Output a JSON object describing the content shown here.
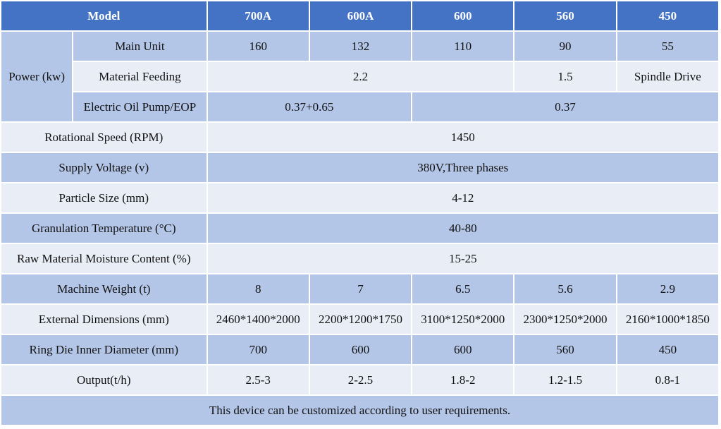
{
  "header": [
    "Model",
    "700A",
    "600A",
    "600",
    "560",
    "450"
  ],
  "power": {
    "label": "Power (kw)",
    "rows": [
      {
        "label": "Main Unit",
        "cells": [
          "160",
          "132",
          "110",
          "90",
          "55"
        ]
      },
      {
        "label": "Material Feeding",
        "cells": [
          "2.2",
          "1.5",
          "Spindle Drive"
        ]
      },
      {
        "label": "Electric Oil Pump/EOP",
        "cells": [
          "0.37+0.65",
          "0.37"
        ]
      }
    ]
  },
  "rows": [
    {
      "label": "Rotational Speed (RPM)",
      "cells": [
        "1450"
      ]
    },
    {
      "label": "Supply Voltage (v)",
      "cells": [
        "380V,Three phases"
      ]
    },
    {
      "label": "Particle Size (mm)",
      "cells": [
        "4-12"
      ]
    },
    {
      "label": "Granulation Temperature (°C)",
      "cells": [
        "40-80"
      ]
    },
    {
      "label": "Raw Material Moisture Content (%)",
      "cells": [
        "15-25"
      ]
    },
    {
      "label": "Machine Weight (t)",
      "cells": [
        "8",
        "7",
        "6.5",
        "5.6",
        "2.9"
      ]
    },
    {
      "label": "External Dimensions (mm)",
      "cells": [
        "2460*1400*2000",
        "2200*1200*1750",
        "3100*1250*2000",
        "2300*1250*2000",
        "2160*1000*1850"
      ]
    },
    {
      "label": "Ring Die Inner Diameter (mm)",
      "cells": [
        "700",
        "600",
        "600",
        "560",
        "450"
      ]
    },
    {
      "label": "Output(t/h)",
      "cells": [
        "2.5-3",
        "2-2.5",
        "1.8-2",
        "1.2-1.5",
        "0.8-1"
      ]
    }
  ],
  "footer": "This device can be customized according to user requirements."
}
